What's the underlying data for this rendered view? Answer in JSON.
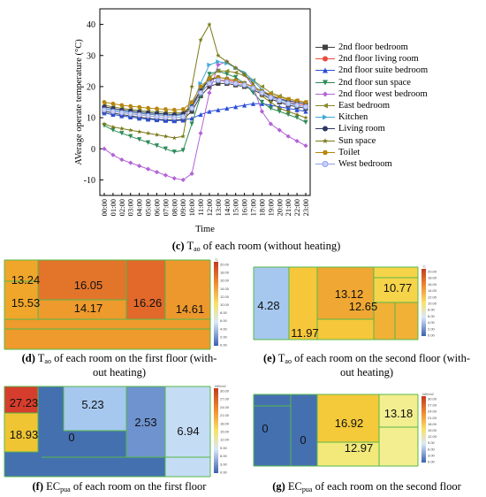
{
  "line_chart": {
    "ylabel": "AVerage operate temperature (°C)",
    "xlabel": "Time",
    "yticks": [
      -10,
      0,
      10,
      20,
      30,
      40
    ],
    "xticks": [
      "00:00",
      "01:00",
      "02:00",
      "03:00",
      "04:00",
      "05:00",
      "06:00",
      "07:00",
      "08:00",
      "09:00",
      "10:00",
      "11:00",
      "12:00",
      "13:00",
      "14:00",
      "15:00",
      "16:00",
      "17:00",
      "18:00",
      "19:00",
      "20:00",
      "21:00",
      "22:00",
      "23:00"
    ],
    "caption_label": "(c)",
    "caption_var": "T",
    "caption_sub": "ao",
    "caption_text": " of each room (without heating)"
  },
  "chart_data": {
    "type": "line",
    "xlabel": "Time",
    "ylabel": "AVerage operate temperature (°C)",
    "ylim": [
      -15,
      45
    ],
    "categories": [
      "00:00",
      "01:00",
      "02:00",
      "03:00",
      "04:00",
      "05:00",
      "06:00",
      "07:00",
      "08:00",
      "09:00",
      "10:00",
      "11:00",
      "12:00",
      "13:00",
      "14:00",
      "15:00",
      "16:00",
      "17:00",
      "18:00",
      "19:00",
      "20:00",
      "21:00",
      "22:00",
      "23:00"
    ],
    "legend": "right",
    "series": [
      {
        "name": "2nd floor bedroom",
        "color": "#404040",
        "marker": "square",
        "values": [
          12,
          11.5,
          11,
          10.6,
          10.2,
          9.8,
          9.5,
          9.3,
          9.2,
          9.5,
          12,
          17,
          20,
          21,
          21,
          20.5,
          20,
          19,
          17.5,
          16,
          15,
          14,
          13.5,
          13
        ]
      },
      {
        "name": "2nd floor living room",
        "color": "#e74c3c",
        "marker": "circle",
        "values": [
          13,
          12.5,
          12,
          11.7,
          11.4,
          11.1,
          10.9,
          10.7,
          10.6,
          11,
          13.5,
          18,
          21,
          22,
          22,
          21.5,
          21,
          20,
          18.5,
          17,
          16,
          15,
          14.5,
          14
        ]
      },
      {
        "name": "2nd floor suite bedroom",
        "color": "#2c4fd6",
        "marker": "triangle-up",
        "values": [
          11.5,
          11,
          10.6,
          10.2,
          9.8,
          9.5,
          9.3,
          9.1,
          9,
          9.2,
          9.8,
          11,
          12,
          12.5,
          13,
          13.5,
          14,
          14.5,
          14.5,
          14,
          13.5,
          13,
          12.5,
          12
        ]
      },
      {
        "name": "2nd floor sun space",
        "color": "#2e8b57",
        "marker": "triangle-down",
        "values": [
          7.5,
          6,
          5,
          4,
          3,
          2,
          1,
          0,
          -1,
          -0.5,
          8,
          17,
          24,
          25,
          24,
          23,
          21,
          18,
          15,
          13,
          12,
          11,
          10,
          8.5
        ]
      },
      {
        "name": "2nd floor west bedroom",
        "color": "#b264d6",
        "marker": "diamond",
        "values": [
          0,
          -2,
          -3.5,
          -4.5,
          -5.5,
          -6.5,
          -7.5,
          -8.5,
          -9.5,
          -10,
          -8,
          5,
          18,
          27,
          28,
          26,
          24,
          20,
          12,
          8,
          6,
          4,
          2.5,
          1
        ]
      },
      {
        "name": "East bedroom",
        "color": "#8a8a2a",
        "marker": "triangle-left",
        "values": [
          14,
          13.5,
          13,
          12.7,
          12.4,
          12.1,
          11.9,
          11.7,
          11.5,
          11.7,
          14,
          19,
          23,
          25,
          25,
          24.5,
          23.5,
          22,
          20,
          18,
          17,
          16,
          15.5,
          15
        ]
      },
      {
        "name": "Kitchen",
        "color": "#3fa9d6",
        "marker": "triangle-right",
        "values": [
          13,
          12.5,
          12,
          11.8,
          11.5,
          11.2,
          11,
          10.8,
          10.6,
          11,
          14,
          21,
          27,
          28,
          27.5,
          26,
          24.5,
          22,
          19,
          17,
          16,
          15,
          14,
          13.5
        ]
      },
      {
        "name": "Living room",
        "color": "#303860",
        "marker": "circle",
        "values": [
          13.5,
          13,
          12.5,
          12.2,
          11.9,
          11.6,
          11.4,
          11.2,
          11,
          11.3,
          13.5,
          19,
          22,
          23,
          22.5,
          22,
          21,
          20,
          18.5,
          17,
          16,
          15.5,
          15,
          14.5
        ]
      },
      {
        "name": "Sun space",
        "color": "#7a7a1a",
        "marker": "star",
        "values": [
          8,
          7,
          6.5,
          6,
          5.5,
          5,
          4.5,
          4,
          3.5,
          4,
          20,
          35,
          40,
          30,
          28,
          26,
          24,
          21,
          17,
          15,
          13,
          12,
          11,
          10
        ]
      },
      {
        "name": "Toilet",
        "color": "#b8860b",
        "marker": "hexagon",
        "values": [
          15,
          14.5,
          14,
          13.7,
          13.4,
          13.1,
          12.9,
          12.7,
          12.5,
          12.7,
          15,
          20,
          22.5,
          23,
          22.5,
          22,
          21,
          20,
          18.5,
          17.5,
          16.5,
          16,
          15.5,
          15
        ]
      },
      {
        "name": "West bedroom",
        "color": "#8e9ee8",
        "marker": "circle-open",
        "values": [
          12.5,
          12,
          11.6,
          11.2,
          10.9,
          10.6,
          10.3,
          10.1,
          10,
          10.3,
          13,
          18,
          21,
          22,
          21.5,
          21,
          20.5,
          19.5,
          18,
          16.5,
          15.5,
          14.5,
          14,
          13.5
        ]
      }
    ]
  },
  "heatmaps": [
    {
      "caption_label": "(d)",
      "caption_var": "T",
      "caption_sub": "ao",
      "caption_text": " of each room on the first floor (with-",
      "caption_text2": "out heating)",
      "legend_unit": "°C",
      "legend_ticks": [
        "20.00",
        "18.00",
        "16.00",
        "14.00",
        "12.00",
        "10.00",
        "8.00",
        "6.00",
        "4.00",
        "2.00",
        "0.00"
      ],
      "labels": [
        "13.24",
        "15.53",
        "16.05",
        "16.26",
        "14.17",
        "14.61"
      ]
    },
    {
      "caption_label": "(e)",
      "caption_var": "T",
      "caption_sub": "ao",
      "caption_text": " of each room on the second floor (with-",
      "caption_text2": "out heating)",
      "legend_unit": "°C",
      "legend_ticks": [
        "20.00",
        "18.00",
        "16.00",
        "14.00",
        "12.00",
        "10.00",
        "8.00",
        "6.00",
        "4.00",
        "2.00",
        "0.00"
      ],
      "labels": [
        "4.28",
        "13.12",
        "10.77",
        "11.97",
        "12.65"
      ]
    },
    {
      "caption_label": "(f)",
      "caption_var": "EC",
      "caption_sub": "pua",
      "caption_text": " of each room on the first floor",
      "caption_text2": "",
      "legend_unit": "kWh/m2",
      "legend_ticks": [
        "30.00",
        "27.00",
        "24.00",
        "21.00",
        "18.00",
        "15.00",
        "12.00",
        "9.00",
        "6.00",
        "3.00",
        "0.00"
      ],
      "labels": [
        "27.23",
        "18.93",
        "0",
        "5.23",
        "2.53",
        "6.94"
      ]
    },
    {
      "caption_label": "(g)",
      "caption_var": "EC",
      "caption_sub": "pua",
      "caption_text": " of each room on the second floor",
      "caption_text2": "",
      "legend_unit": "kWh/m2",
      "legend_ticks": [
        "30.00",
        "27.00",
        "24.00",
        "21.00",
        "18.00",
        "15.00",
        "12.00",
        "9.00",
        "6.00",
        "3.00",
        "0.00"
      ],
      "labels": [
        "0",
        "0",
        "16.92",
        "13.18",
        "12.97"
      ]
    }
  ]
}
